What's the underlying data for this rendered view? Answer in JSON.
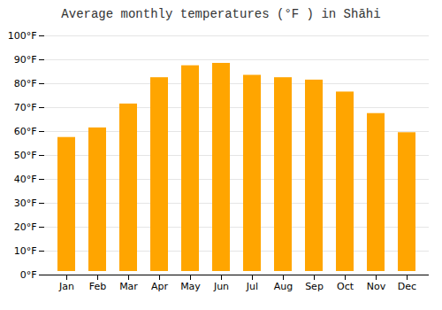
{
  "chart_data": {
    "type": "bar",
    "title": "Average monthly temperatures (°F ) in Shāhi",
    "categories": [
      "Jan",
      "Feb",
      "Mar",
      "Apr",
      "May",
      "Jun",
      "Jul",
      "Aug",
      "Sep",
      "Oct",
      "Nov",
      "Dec"
    ],
    "values": [
      59,
      63,
      73,
      84,
      89,
      90,
      85,
      84,
      83,
      78,
      69,
      61
    ],
    "color": "#FFA500",
    "ylim": [
      0,
      100
    ],
    "yticks": [
      {
        "value": 0,
        "label": "0°F"
      },
      {
        "value": 10,
        "label": "10°F"
      },
      {
        "value": 20,
        "label": "20°F"
      },
      {
        "value": 30,
        "label": "30°F"
      },
      {
        "value": 40,
        "label": "40°F"
      },
      {
        "value": 50,
        "label": "50°F"
      },
      {
        "value": 60,
        "label": "60°F"
      },
      {
        "value": 70,
        "label": "70°F"
      },
      {
        "value": 80,
        "label": "80°F"
      },
      {
        "value": 90,
        "label": "90°F"
      },
      {
        "value": 100,
        "label": "100°F"
      }
    ],
    "grid": true
  }
}
